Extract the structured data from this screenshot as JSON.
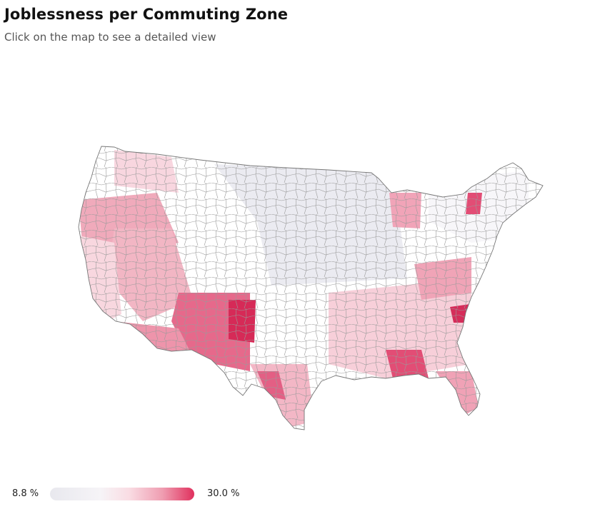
{
  "header": {
    "title": "Joblessness per Commuting Zone",
    "subtitle": "Click on the map to see a detailed view"
  },
  "map": {
    "region": "contiguous-united-states",
    "unit": "commuting-zone",
    "colors": {
      "low": "#e8e8ee",
      "mid": "#f9dce3",
      "high": "#e0305d",
      "border": "#9a9a9a",
      "outline": "#777777"
    }
  },
  "legend": {
    "min_label": "8.8 %",
    "max_label": "30.0 %",
    "min_value": 8.8,
    "max_value": 30.0
  }
}
